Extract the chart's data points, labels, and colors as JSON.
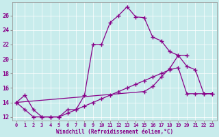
{
  "xlabel": "Windchill (Refroidissement éolien,°C)",
  "bg_color": "#c8ecec",
  "line_color": "#880088",
  "grid_color": "#ffffff",
  "xlim": [
    -0.5,
    23.5
  ],
  "ylim": [
    11.5,
    27.8
  ],
  "yticks": [
    12,
    14,
    16,
    18,
    20,
    22,
    24,
    26
  ],
  "xticks": [
    0,
    1,
    2,
    3,
    4,
    5,
    6,
    7,
    8,
    9,
    10,
    11,
    12,
    13,
    14,
    15,
    16,
    17,
    18,
    19,
    20,
    21,
    22,
    23
  ],
  "series": [
    {
      "x": [
        0,
        1,
        2,
        3,
        4,
        5,
        6,
        7,
        8,
        9,
        10,
        11,
        12,
        13,
        14,
        15,
        16,
        17,
        18,
        19,
        20
      ],
      "y": [
        14,
        15,
        13,
        12,
        12,
        12,
        13,
        13,
        15,
        22,
        22,
        25,
        26,
        27.2,
        25.8,
        25.7,
        23.0,
        22.5,
        21.0,
        20.5,
        20.5
      ]
    },
    {
      "x": [
        0,
        15,
        16,
        17,
        18,
        19,
        20,
        21,
        22,
        23
      ],
      "y": [
        14,
        15.5,
        16.2,
        17.5,
        18.7,
        20.5,
        19.0,
        18.5,
        15.2,
        15.2
      ]
    },
    {
      "x": [
        0,
        1,
        2,
        3,
        4,
        5,
        6,
        7,
        8,
        9,
        10,
        11,
        12,
        13,
        14,
        15,
        16,
        17,
        18,
        19,
        20,
        21,
        22,
        23
      ],
      "y": [
        14,
        13,
        12,
        12,
        12,
        12,
        12.5,
        13,
        13.5,
        14,
        14.5,
        15,
        15.5,
        16,
        16.5,
        17,
        17.5,
        18,
        18.5,
        18.8,
        15.2,
        15.2,
        15.2,
        15.2
      ]
    }
  ]
}
